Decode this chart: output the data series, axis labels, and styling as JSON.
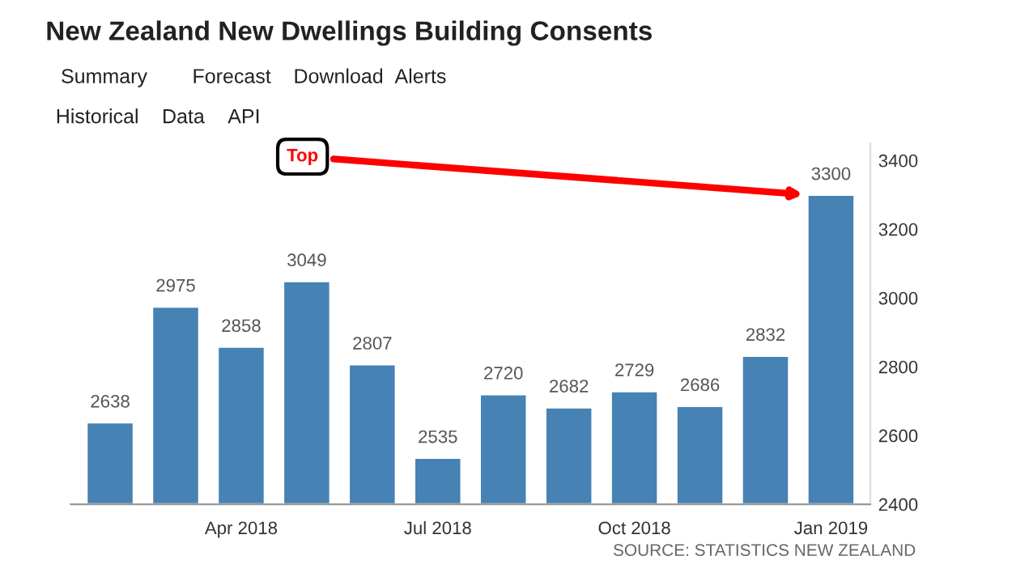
{
  "chart_data": {
    "type": "bar",
    "title": "New Zealand New Dwellings Building Consents",
    "categories": [
      null,
      null,
      "Apr 2018",
      null,
      null,
      "Jul 2018",
      null,
      null,
      "Oct 2018",
      null,
      null,
      "Jan 2019"
    ],
    "series": [
      {
        "color": "#4682b4",
        "values": [
          2638,
          2975,
          2858,
          3049,
          2807,
          2535,
          2720,
          2682,
          2729,
          2686,
          2832,
          3300
        ]
      }
    ],
    "data_labels": true,
    "ylim": [
      2400,
      3450
    ],
    "yticks": [
      2400,
      2600,
      2800,
      3000,
      3200,
      3400
    ],
    "grid": false,
    "legend": false,
    "annotations": [
      "Summary",
      "Forecast",
      "Download",
      "Alerts",
      "Historical",
      "Data",
      "API",
      "Top",
      "SOURCE: STATISTICS NEW ZEALAND"
    ]
  }
}
